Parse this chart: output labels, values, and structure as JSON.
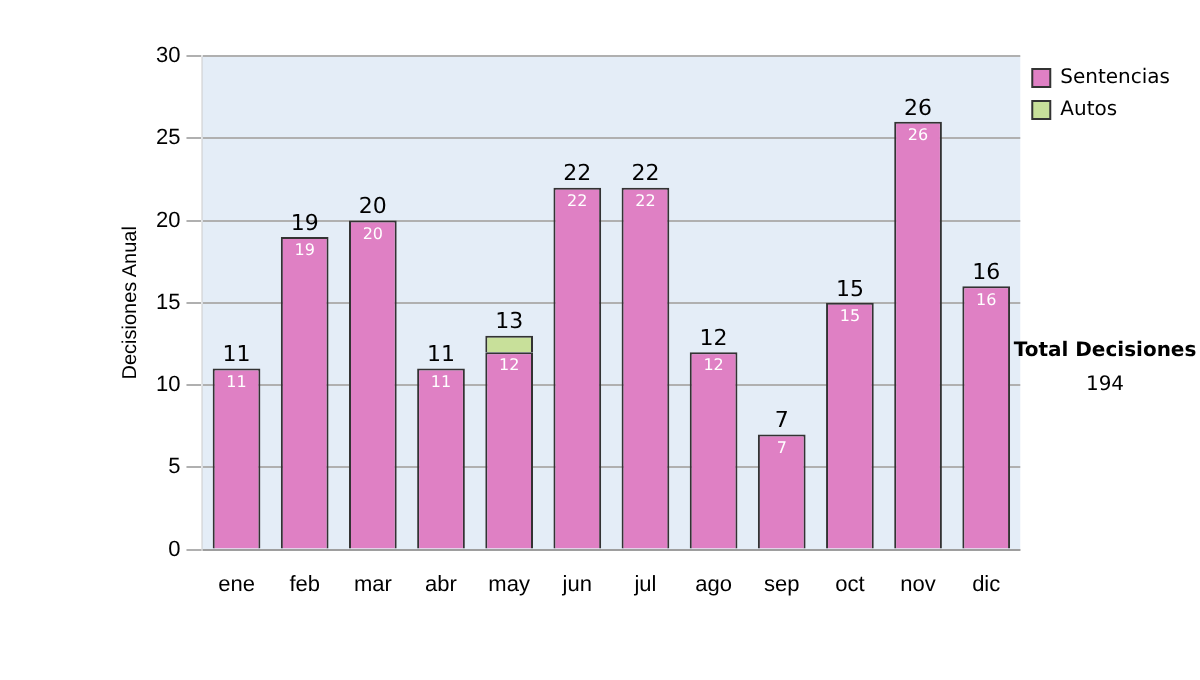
{
  "chart_data": {
    "type": "bar",
    "stacked": true,
    "ylabel": "Decisiones Anual",
    "categories": [
      "ene",
      "feb",
      "mar",
      "abr",
      "may",
      "jun",
      "jul",
      "ago",
      "sep",
      "oct",
      "nov",
      "dic"
    ],
    "series": [
      {
        "name": "Sentencias",
        "color": "#df80c4",
        "values": [
          11,
          19,
          20,
          11,
          12,
          22,
          22,
          12,
          7,
          15,
          26,
          16
        ],
        "value_labels": [
          "11",
          "19",
          "20",
          "11",
          "12",
          "22",
          "22",
          "12",
          "7",
          "15",
          "26",
          "16"
        ]
      },
      {
        "name": "Autos",
        "color": "#c8e09a",
        "values": [
          0,
          0,
          0,
          0,
          1,
          0,
          0,
          0,
          0,
          0,
          0,
          0
        ]
      }
    ],
    "totals": [
      "11",
      "19",
      "20",
      "11",
      "13",
      "22",
      "22",
      "12",
      "7",
      "15",
      "26",
      "16"
    ],
    "ylim": [
      0,
      30
    ],
    "yticks": [
      0,
      5,
      10,
      15,
      20,
      25,
      30
    ],
    "grid": "y",
    "legend": "right",
    "annotations": [
      "Total Decisiones",
      "194"
    ]
  }
}
